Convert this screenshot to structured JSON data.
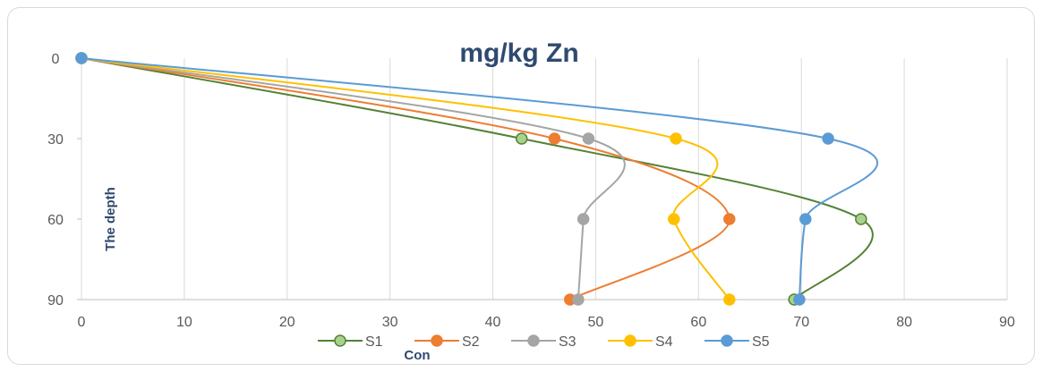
{
  "chart_data": {
    "type": "scatter",
    "title": "mg/kg Zn",
    "xlabel": "Con",
    "ylabel": "The depth",
    "xlim": [
      0,
      90
    ],
    "ylim": [
      0,
      90
    ],
    "y_inverted": true,
    "x_ticks": [
      "0",
      "10",
      "20",
      "30",
      "40",
      "50",
      "60",
      "70",
      "80",
      "90"
    ],
    "y_ticks": [
      "0",
      "30",
      "60",
      "90"
    ],
    "grid": "vertical",
    "legend_position": "bottom",
    "smooth_lines": true,
    "series": [
      {
        "name": "S1",
        "color": "#548235",
        "marker_fill": "#a9d18e",
        "points": [
          [
            0,
            0
          ],
          [
            42.8,
            30
          ],
          [
            75.8,
            60
          ],
          [
            69.3,
            90
          ]
        ]
      },
      {
        "name": "S2",
        "color": "#ed7d31",
        "marker_fill": "#ed7d31",
        "points": [
          [
            0,
            0
          ],
          [
            46,
            30
          ],
          [
            63,
            60
          ],
          [
            47.5,
            90
          ]
        ]
      },
      {
        "name": "S3",
        "color": "#a5a5a5",
        "marker_fill": "#a5a5a5",
        "points": [
          [
            0,
            0
          ],
          [
            49.3,
            30
          ],
          [
            48.8,
            60
          ],
          [
            48.3,
            90
          ]
        ]
      },
      {
        "name": "S4",
        "color": "#ffc000",
        "marker_fill": "#ffc000",
        "points": [
          [
            0,
            0
          ],
          [
            57.8,
            30
          ],
          [
            57.6,
            60
          ],
          [
            63,
            90
          ]
        ]
      },
      {
        "name": "S5",
        "color": "#5b9bd5",
        "marker_fill": "#5b9bd5",
        "points": [
          [
            0,
            0
          ],
          [
            72.6,
            30
          ],
          [
            70.4,
            60
          ],
          [
            69.8,
            90
          ]
        ]
      }
    ]
  }
}
